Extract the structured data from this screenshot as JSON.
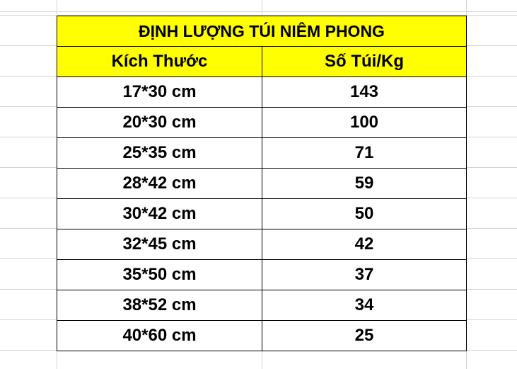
{
  "table": {
    "title": "ĐỊNH LƯỢNG TÚI NIÊM PHONG",
    "headers": [
      "Kích Thước",
      "Số Túi/Kg"
    ],
    "rows": [
      [
        "17*30 cm",
        "143"
      ],
      [
        "20*30 cm",
        "100"
      ],
      [
        "25*35 cm",
        "71"
      ],
      [
        "28*42 cm",
        "59"
      ],
      [
        "30*42 cm",
        "50"
      ],
      [
        "32*45 cm",
        "42"
      ],
      [
        "35*50 cm",
        "37"
      ],
      [
        "38*52 cm",
        "34"
      ],
      [
        "40*60 cm",
        "25"
      ]
    ],
    "header_fill": "#ffff00"
  }
}
